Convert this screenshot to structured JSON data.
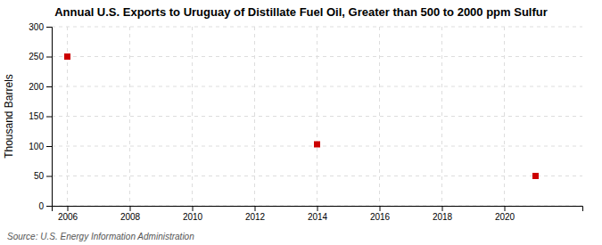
{
  "chart_data": {
    "type": "scatter",
    "title": "Annual U.S. Exports to Uruguay of Distillate Fuel Oil, Greater than 500 to 2000 ppm Sulfur",
    "ylabel": "Thousand Barrels",
    "source": "Source: U.S. Energy Information Administration",
    "x": [
      2006,
      2014,
      2021
    ],
    "values": [
      250,
      103,
      50
    ],
    "color": "#cc0000",
    "marker": "square",
    "xlim": [
      2005.5,
      2022.5
    ],
    "ylim": [
      0,
      300
    ],
    "xticks": [
      2006,
      2008,
      2010,
      2012,
      2014,
      2016,
      2018,
      2020
    ],
    "yticks": [
      0,
      50,
      100,
      150,
      200,
      250,
      300
    ],
    "grid": true
  }
}
